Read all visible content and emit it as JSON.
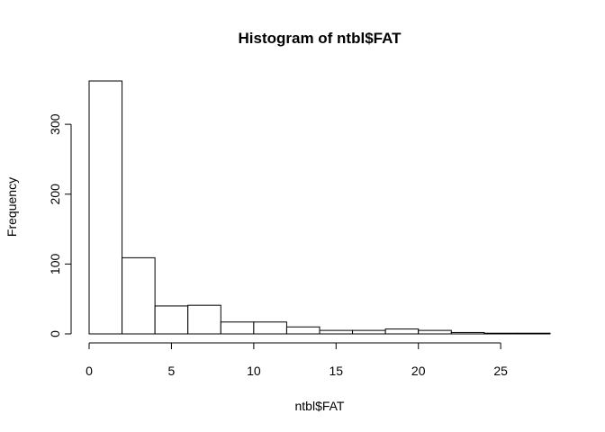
{
  "chart_data": {
    "type": "bar",
    "title": "Histogram of ntbl$FAT",
    "xlabel": "ntbl$FAT",
    "ylabel": "Frequency",
    "bins": [
      {
        "x0": 0,
        "x1": 2,
        "count": 362
      },
      {
        "x0": 2,
        "x1": 4,
        "count": 109
      },
      {
        "x0": 4,
        "x1": 6,
        "count": 40
      },
      {
        "x0": 6,
        "x1": 8,
        "count": 41
      },
      {
        "x0": 8,
        "x1": 10,
        "count": 17
      },
      {
        "x0": 10,
        "x1": 12,
        "count": 17
      },
      {
        "x0": 12,
        "x1": 14,
        "count": 10
      },
      {
        "x0": 14,
        "x1": 16,
        "count": 5
      },
      {
        "x0": 16,
        "x1": 18,
        "count": 5
      },
      {
        "x0": 18,
        "x1": 20,
        "count": 7
      },
      {
        "x0": 20,
        "x1": 22,
        "count": 5
      },
      {
        "x0": 22,
        "x1": 24,
        "count": 2
      },
      {
        "x0": 24,
        "x1": 26,
        "count": 1
      },
      {
        "x0": 26,
        "x1": 28,
        "count": 1
      }
    ],
    "xlim": [
      0,
      28
    ],
    "ylim": [
      0,
      362
    ],
    "x_ticks": [
      0,
      5,
      10,
      15,
      20,
      25
    ],
    "y_ticks": [
      0,
      100,
      200,
      300
    ],
    "grid": false,
    "legend": "none"
  }
}
